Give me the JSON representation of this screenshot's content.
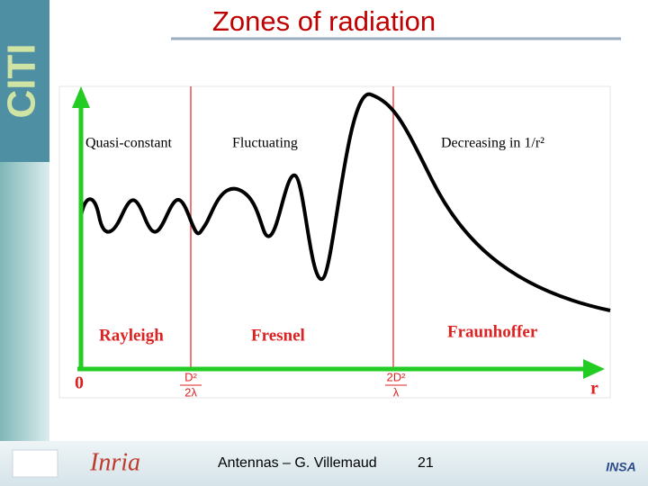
{
  "header": {
    "title": "Zones of radiation",
    "logo": "CITI"
  },
  "diagram": {
    "zones": [
      "Quasi-constant",
      "Fluctuating",
      "Decreasing in 1/r²"
    ],
    "regions": [
      "Rayleigh",
      "Fresnel",
      "Fraunhoffer"
    ],
    "origin": "0",
    "axis": "r",
    "boundaries": [
      {
        "numerator": "D²",
        "denominator": "2λ"
      },
      {
        "numerator": "2D²",
        "denominator": "λ"
      }
    ]
  },
  "footer": {
    "left_logo": "Inria",
    "text": "Antennas – G. Villemaud",
    "page": "21",
    "right_logo": "INSA"
  }
}
